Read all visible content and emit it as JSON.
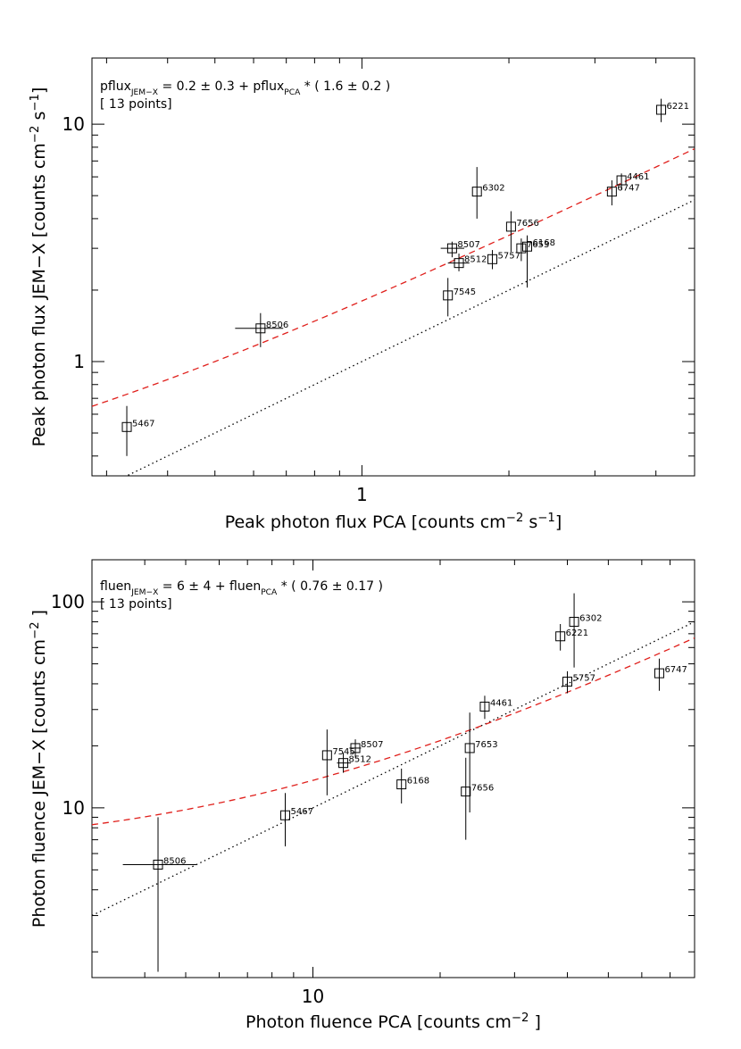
{
  "chart_data": [
    {
      "type": "scatter",
      "xlabel": "Peak photon flux PCA",
      "xlabel_unit": "[counts cm",
      "xlabel_exp1": "−2",
      "xlabel_mid": " s",
      "xlabel_exp2": "−1",
      "xlabel_end": "]",
      "ylabel": "Peak photon flux JEM−X",
      "ylabel_unit": "[counts cm",
      "ylabel_exp1": "−2",
      "ylabel_mid": " s",
      "ylabel_exp2": "−1",
      "ylabel_end": "]",
      "xscale": "log",
      "yscale": "log",
      "xlim": [
        0.28,
        4.8
      ],
      "ylim": [
        0.33,
        19
      ],
      "x_ticks": [
        {
          "value": 1,
          "label": "1"
        }
      ],
      "y_ticks": [
        {
          "value": 1,
          "label": "1"
        },
        {
          "value": 10,
          "label": "10"
        }
      ],
      "annotation": {
        "v1": "pflux",
        "s1": "JEM−X",
        "eq": " = 0.2 ± 0.3 + pflux",
        "s2": "PCA",
        "rest": " * ( 1.6 ± 0.2 )",
        "line2": "[ 13 points]"
      },
      "fit": {
        "a": 0.2,
        "b": 1.6
      },
      "reference_line": "y = x",
      "points": [
        {
          "label": "5467",
          "x": 0.33,
          "y": 0.53,
          "ylo": 0.4,
          "yhi": 0.65,
          "xlo": 0.33,
          "xhi": 0.33
        },
        {
          "label": "8506",
          "x": 0.62,
          "y": 1.38,
          "ylo": 1.15,
          "yhi": 1.6,
          "xlo": 0.55,
          "xhi": 0.69
        },
        {
          "label": "7545",
          "x": 1.5,
          "y": 1.9,
          "ylo": 1.55,
          "yhi": 2.25,
          "xlo": 1.5,
          "xhi": 1.5
        },
        {
          "label": "8507",
          "x": 1.53,
          "y": 3.0,
          "ylo": 2.75,
          "yhi": 3.2,
          "xlo": 1.45,
          "xhi": 1.62
        },
        {
          "label": "8512",
          "x": 1.58,
          "y": 2.6,
          "ylo": 2.4,
          "yhi": 2.85,
          "xlo": 1.5,
          "xhi": 1.66
        },
        {
          "label": "6302",
          "x": 1.72,
          "y": 5.2,
          "ylo": 4.0,
          "yhi": 6.6,
          "xlo": 1.72,
          "xhi": 1.72
        },
        {
          "label": "5757",
          "x": 1.85,
          "y": 2.7,
          "ylo": 2.45,
          "yhi": 2.95,
          "xlo": 1.85,
          "xhi": 1.85
        },
        {
          "label": "7656",
          "x": 2.02,
          "y": 3.7,
          "ylo": 2.9,
          "yhi": 4.3,
          "xlo": 2.02,
          "xhi": 2.02
        },
        {
          "label": "7653",
          "x": 2.12,
          "y": 3.0,
          "ylo": 2.65,
          "yhi": 3.3,
          "xlo": 2.12,
          "xhi": 2.12
        },
        {
          "label": "6168",
          "x": 2.18,
          "y": 3.05,
          "ylo": 2.05,
          "yhi": 3.4,
          "xlo": 2.18,
          "xhi": 2.18
        },
        {
          "label": "6747",
          "x": 3.25,
          "y": 5.2,
          "ylo": 4.55,
          "yhi": 5.8,
          "xlo": 3.25,
          "xhi": 3.25
        },
        {
          "label": "4461",
          "x": 3.4,
          "y": 5.8,
          "ylo": 5.3,
          "yhi": 6.2,
          "xlo": 3.4,
          "xhi": 3.4
        },
        {
          "label": "6221",
          "x": 4.1,
          "y": 11.5,
          "ylo": 10.2,
          "yhi": 12.8,
          "xlo": 4.1,
          "xhi": 4.1
        }
      ]
    },
    {
      "type": "scatter",
      "xlabel": "Photon fluence PCA",
      "xlabel_unit": "[counts cm",
      "xlabel_exp1": "−2",
      "xlabel_mid": "",
      "xlabel_exp2": "",
      "xlabel_end": " ]",
      "ylabel": "Photon fluence JEM−X",
      "ylabel_unit": "[counts cm",
      "ylabel_exp1": "−2",
      "ylabel_mid": "",
      "ylabel_exp2": "",
      "ylabel_end": " ]",
      "xscale": "log",
      "yscale": "log",
      "xlim": [
        3.0,
        80
      ],
      "ylim": [
        1.5,
        160
      ],
      "x_ticks": [
        {
          "value": 10,
          "label": "10"
        }
      ],
      "y_ticks": [
        {
          "value": 10,
          "label": "10"
        },
        {
          "value": 100,
          "label": "100"
        }
      ],
      "annotation": {
        "v1": "fluen",
        "s1": "JEM−X",
        "eq": " = 6 ± 4 + fluen",
        "s2": "PCA",
        "rest": " * ( 0.76 ± 0.17 )",
        "line2": "[ 13 points]"
      },
      "fit": {
        "a": 6,
        "b": 0.76
      },
      "reference_line": "y = x",
      "points": [
        {
          "label": "8506",
          "x": 4.3,
          "y": 5.3,
          "ylo": 1.6,
          "yhi": 9.0,
          "xlo": 3.55,
          "xhi": 5.3
        },
        {
          "label": "5467",
          "x": 8.6,
          "y": 9.2,
          "ylo": 6.5,
          "yhi": 11.8,
          "xlo": 8.6,
          "xhi": 8.6
        },
        {
          "label": "7545",
          "x": 10.8,
          "y": 18.0,
          "ylo": 11.5,
          "yhi": 24.0,
          "xlo": 10.8,
          "xhi": 10.8
        },
        {
          "label": "8512",
          "x": 11.8,
          "y": 16.5,
          "ylo": 14.8,
          "yhi": 18.5,
          "xlo": 11.4,
          "xhi": 12.3
        },
        {
          "label": "8507",
          "x": 12.6,
          "y": 19.5,
          "ylo": 17.5,
          "yhi": 21.5,
          "xlo": 12.2,
          "xhi": 13.0
        },
        {
          "label": "6168",
          "x": 16.2,
          "y": 13.0,
          "ylo": 10.5,
          "yhi": 15.5,
          "xlo": 16.2,
          "xhi": 16.2
        },
        {
          "label": "7656",
          "x": 23.0,
          "y": 12.0,
          "ylo": 7.0,
          "yhi": 17.5,
          "xlo": 23.0,
          "xhi": 23.0
        },
        {
          "label": "7653",
          "x": 23.5,
          "y": 19.5,
          "ylo": 9.5,
          "yhi": 29.0,
          "xlo": 23.5,
          "xhi": 23.5
        },
        {
          "label": "4461",
          "x": 25.5,
          "y": 31.0,
          "ylo": 27.0,
          "yhi": 35.0,
          "xlo": 25.5,
          "xhi": 25.5
        },
        {
          "label": "6221",
          "x": 38.5,
          "y": 68.0,
          "ylo": 58.0,
          "yhi": 78.0,
          "xlo": 38.5,
          "xhi": 38.5
        },
        {
          "label": "5757",
          "x": 40.0,
          "y": 41.0,
          "ylo": 36.0,
          "yhi": 46.0,
          "xlo": 40.0,
          "xhi": 40.0
        },
        {
          "label": "6302",
          "x": 41.5,
          "y": 80.0,
          "ylo": 48.0,
          "yhi": 110.0,
          "xlo": 41.5,
          "xhi": 41.5
        },
        {
          "label": "6747",
          "x": 66.0,
          "y": 45.0,
          "ylo": 37.0,
          "yhi": 53.0,
          "xlo": 66.0,
          "xhi": 66.0
        }
      ]
    }
  ]
}
